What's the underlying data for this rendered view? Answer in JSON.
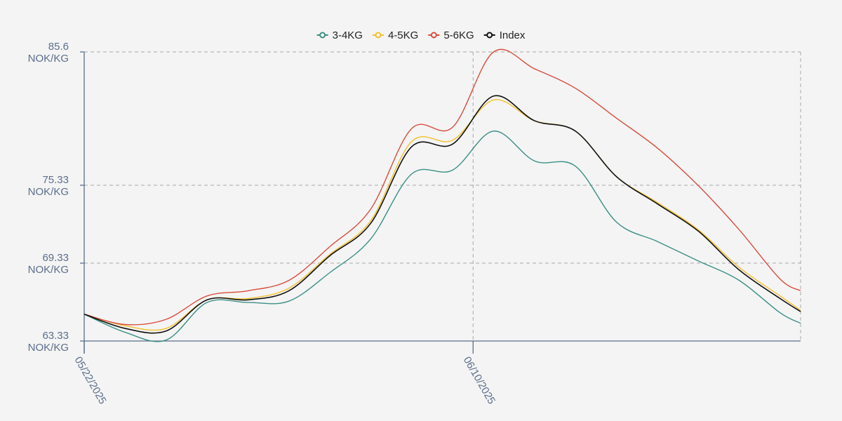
{
  "colors": {
    "background": "#f4f4f4",
    "axis": "#5b6e8c",
    "grid": "#a8a8a8",
    "tick_text": "#5b6e8c"
  },
  "chart_data": {
    "type": "line",
    "title": "",
    "xlabel": "",
    "ylabel": "",
    "legend_position": "top-center",
    "grid": true,
    "x_ticks": [
      "05/22/2025",
      "06/10/2025"
    ],
    "x_tick_dates": [
      "2025-05-22",
      "2025-06-10"
    ],
    "x_range": [
      "2025-05-22",
      "2025-06-26"
    ],
    "y_ticks": [
      {
        "value": 63.33,
        "label": "63.33",
        "unit": "NOK/KG"
      },
      {
        "value": 69.33,
        "label": "69.33",
        "unit": "NOK/KG"
      },
      {
        "value": 75.33,
        "label": "75.33",
        "unit": "NOK/KG"
      },
      {
        "value": 85.6,
        "label": "85.6",
        "unit": "NOK/KG"
      }
    ],
    "ylim": [
      63.33,
      85.6
    ],
    "x": [
      "2025-05-22",
      "2025-05-24",
      "2025-05-26",
      "2025-05-28",
      "2025-05-30",
      "2025-06-01",
      "2025-06-03",
      "2025-06-05",
      "2025-06-07",
      "2025-06-09",
      "2025-06-11",
      "2025-06-13",
      "2025-06-15",
      "2025-06-17",
      "2025-06-19",
      "2025-06-21",
      "2025-06-23",
      "2025-06-25",
      "2025-06-26"
    ],
    "series": [
      {
        "name": "3-4KG",
        "color": "#3b8f85",
        "values": [
          65.4,
          64.0,
          63.4,
          66.3,
          66.3,
          66.4,
          68.6,
          71.2,
          76.2,
          76.5,
          79.5,
          77.2,
          76.8,
          72.5,
          71.0,
          69.5,
          68.0,
          65.5,
          64.7
        ]
      },
      {
        "name": "4-5KG",
        "color": "#f2c12e",
        "values": [
          65.4,
          64.5,
          64.3,
          66.5,
          66.6,
          67.4,
          70.0,
          72.6,
          78.7,
          78.8,
          81.9,
          80.3,
          79.5,
          76.0,
          74.0,
          71.9,
          69.0,
          66.8,
          65.7
        ]
      },
      {
        "name": "5-6KG",
        "color": "#d94d3f",
        "values": [
          65.4,
          64.6,
          65.0,
          66.8,
          67.2,
          68.0,
          70.6,
          73.5,
          79.7,
          79.8,
          85.6,
          84.3,
          82.8,
          80.5,
          78.2,
          75.3,
          71.9,
          68.1,
          67.2
        ]
      },
      {
        "name": "Index",
        "color": "#111111",
        "values": [
          65.4,
          64.3,
          64.1,
          66.5,
          66.5,
          67.2,
          69.9,
          72.4,
          78.3,
          78.5,
          82.2,
          80.3,
          79.5,
          76.0,
          73.9,
          71.8,
          68.8,
          66.6,
          65.6
        ]
      }
    ]
  }
}
